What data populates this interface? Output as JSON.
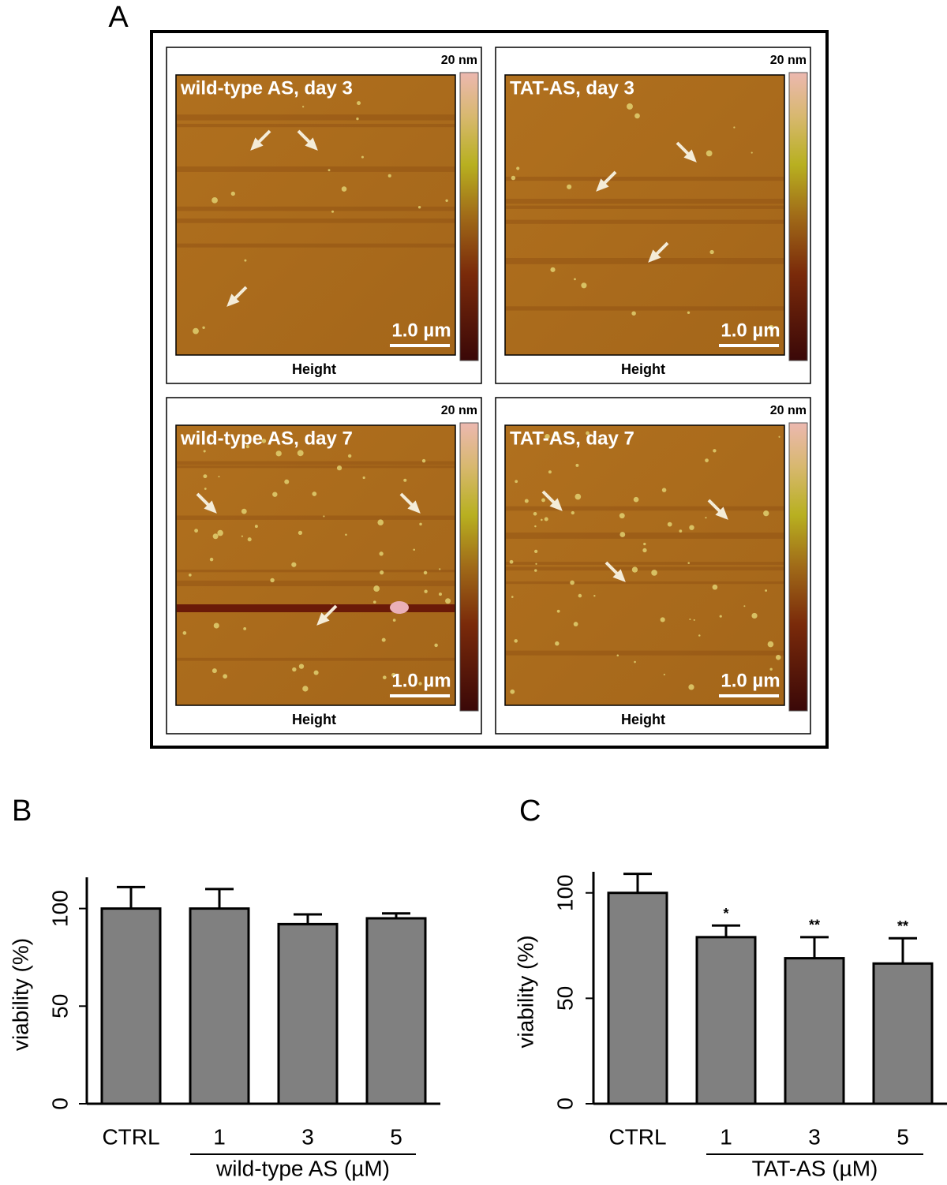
{
  "panel_a": {
    "label": "A",
    "panels": [
      {
        "title": "wild-type AS, day 3",
        "scale_max": "20 nm",
        "scale_bar": "1.0 µm",
        "caption": "Height"
      },
      {
        "title": "TAT-AS, day 3",
        "scale_max": "20 nm",
        "scale_bar": "1.0 µm",
        "caption": "Height"
      },
      {
        "title": "wild-type AS, day 7",
        "scale_max": "20 nm",
        "scale_bar": "1.0 µm",
        "caption": "Height"
      },
      {
        "title": "TAT-AS, day 7",
        "scale_max": "20 nm",
        "scale_bar": "1.0 µm",
        "caption": "Height"
      }
    ]
  },
  "chart_data": [
    {
      "type": "bar",
      "panel_label": "B",
      "ylabel": "viability (%)",
      "xlabel": "wild-type AS (µM)",
      "categories": [
        "CTRL",
        "1",
        "3",
        "5"
      ],
      "values": [
        100,
        100,
        92,
        95
      ],
      "errors": [
        11,
        10,
        5,
        2.5
      ],
      "color": "#808080",
      "ylim": [
        0,
        116
      ],
      "yticks": [
        0,
        50,
        100
      ]
    },
    {
      "type": "bar",
      "panel_label": "C",
      "ylabel": "viability (%)",
      "xlabel": "TAT-AS (µM)",
      "categories": [
        "CTRL",
        "1",
        "3",
        "5"
      ],
      "values": [
        100,
        79,
        69,
        66.5
      ],
      "errors": [
        9,
        5.5,
        10,
        12
      ],
      "significance": [
        null,
        "*",
        "**",
        "**"
      ],
      "color": "#808080",
      "ylim": [
        0,
        110
      ],
      "yticks": [
        0,
        50,
        100
      ]
    }
  ]
}
